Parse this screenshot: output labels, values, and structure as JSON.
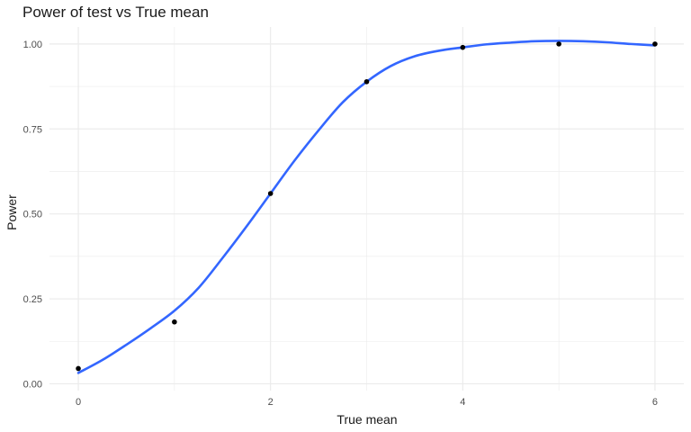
{
  "chart_data": {
    "type": "scatter",
    "title": "Power of test vs True mean",
    "xlabel": "True mean",
    "ylabel": "Power",
    "xlim": [
      -0.3,
      6.3
    ],
    "ylim": [
      -0.02,
      1.05
    ],
    "x_ticks": [
      0,
      2,
      4,
      6
    ],
    "x_tick_labels": [
      "0",
      "2",
      "4",
      "6"
    ],
    "x_minor_ticks": [
      1,
      3,
      5
    ],
    "y_ticks": [
      0,
      0.25,
      0.5,
      0.75,
      1.0
    ],
    "y_tick_labels": [
      "0.00",
      "0.25",
      "0.50",
      "0.75",
      "1.00"
    ],
    "y_minor_ticks": [
      0.125,
      0.375,
      0.625,
      0.875
    ],
    "grid": true,
    "points": [
      {
        "x": 0,
        "y": 0.045
      },
      {
        "x": 1,
        "y": 0.182
      },
      {
        "x": 2,
        "y": 0.56
      },
      {
        "x": 3,
        "y": 0.889
      },
      {
        "x": 4,
        "y": 0.99
      },
      {
        "x": 5,
        "y": 1.0
      },
      {
        "x": 6,
        "y": 1.0
      }
    ],
    "smooth_curve": {
      "color": "#3366FF",
      "x": [
        0,
        0.25,
        0.5,
        0.75,
        1,
        1.25,
        1.5,
        1.75,
        2,
        2.25,
        2.5,
        2.75,
        3,
        3.25,
        3.5,
        3.75,
        4,
        4.25,
        4.5,
        4.75,
        5,
        5.25,
        5.5,
        5.75,
        6
      ],
      "y": [
        0.032,
        0.07,
        0.115,
        0.163,
        0.215,
        0.282,
        0.37,
        0.463,
        0.56,
        0.657,
        0.746,
        0.828,
        0.889,
        0.935,
        0.964,
        0.98,
        0.99,
        0.999,
        1.004,
        1.008,
        1.009,
        1.008,
        1.005,
        1.0,
        0.996
      ]
    },
    "point_color": "#000000",
    "grid_color": "#ebebeb"
  }
}
